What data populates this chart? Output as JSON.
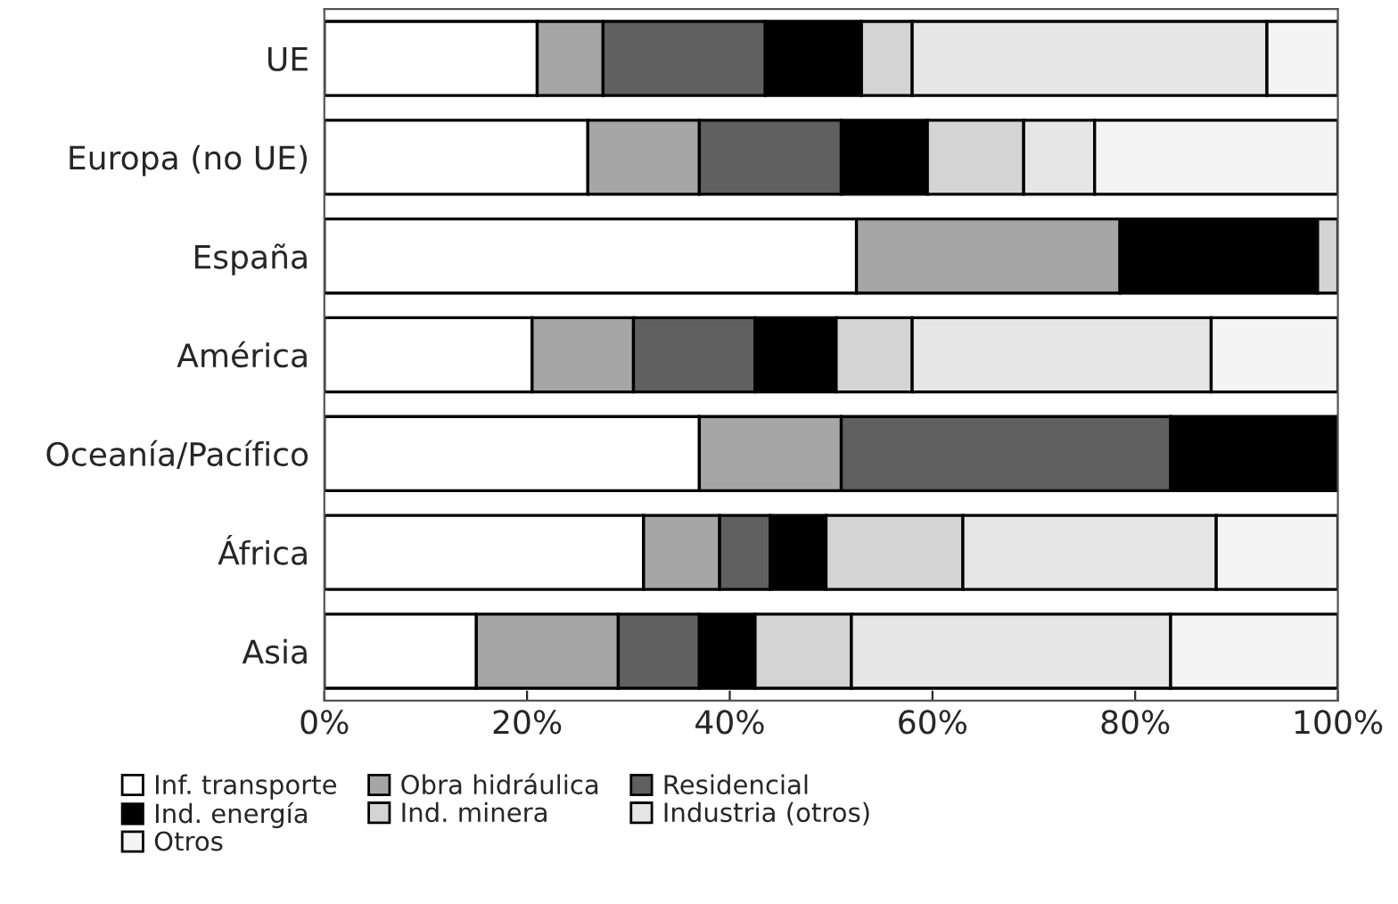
{
  "chart_data": {
    "type": "bar",
    "orientation": "horizontal",
    "stacked": true,
    "categories": [
      "UE",
      "Europa (no UE)",
      "España",
      "América",
      "Oceanía/Pacífico",
      "África",
      "Asia"
    ],
    "series": [
      {
        "name": "Inf. transporte",
        "color": "#ffffff",
        "values": [
          21,
          26,
          52.5,
          20.5,
          37,
          31.5,
          15
        ]
      },
      {
        "name": "Obra hidráulica",
        "color": "#a6a6a6",
        "values": [
          6.5,
          11,
          26,
          10,
          14,
          7.5,
          14
        ]
      },
      {
        "name": "Residencial",
        "color": "#606060",
        "values": [
          16,
          14,
          null,
          12,
          32.5,
          5,
          8
        ]
      },
      {
        "name": "Ind. energía",
        "color": "#000000",
        "values": [
          9.5,
          8.5,
          19.5,
          8,
          16.5,
          5.5,
          5.5
        ]
      },
      {
        "name": "Ind. minera",
        "color": "#d4d4d4",
        "values": [
          5,
          9.5,
          2,
          7.5,
          null,
          13.5,
          9.5
        ]
      },
      {
        "name": "Industria (otros)",
        "color": "#e6e6e6",
        "values": [
          35,
          7,
          null,
          29.5,
          null,
          25,
          31.5
        ]
      },
      {
        "name": "Otros",
        "color": "#f4f4f4",
        "values": [
          7,
          24,
          null,
          12.5,
          null,
          12,
          16.5
        ]
      }
    ],
    "xlim": [
      0,
      100
    ],
    "xticks": [
      {
        "value": 0,
        "label": "0%"
      },
      {
        "value": 20,
        "label": "20%"
      },
      {
        "value": 40,
        "label": "40%"
      },
      {
        "value": 60,
        "label": "60%"
      },
      {
        "value": 80,
        "label": "80%"
      },
      {
        "value": 100,
        "label": "100%"
      }
    ],
    "grid": false,
    "legend": "bottom"
  }
}
